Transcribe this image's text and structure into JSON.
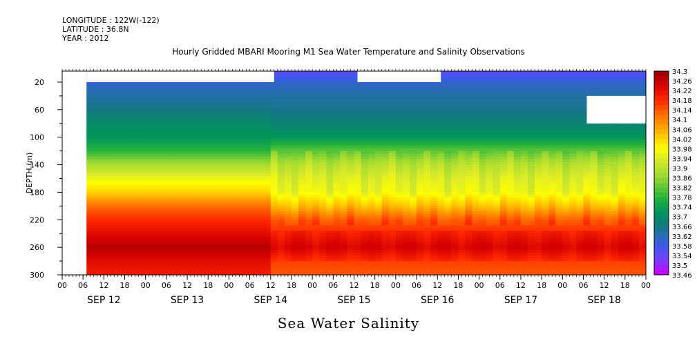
{
  "header": {
    "longitude": "LONGITUDE : 122W(-122)",
    "latitude": "LATITUDE : 36.8N",
    "year": "YEAR : 2012"
  },
  "footer_title": "Sea Water Salinity",
  "chart_data": {
    "type": "heatmap",
    "title": "Hourly Gridded MBARI Mooring M1 Sea Water Temperature and Salinity Observations",
    "xlabel": "",
    "ylabel": "DEPTH (m)",
    "x_range_hours": [
      0,
      168
    ],
    "y_range": [
      300,
      4
    ],
    "y_inverted": true,
    "y_ticks": [
      20,
      60,
      100,
      140,
      180,
      220,
      260,
      300
    ],
    "x_hour_ticks": [
      "00",
      "06",
      "12",
      "18",
      "00",
      "06",
      "12",
      "18",
      "00",
      "06",
      "12",
      "18",
      "00",
      "06",
      "12",
      "18",
      "00",
      "06",
      "12",
      "18",
      "00",
      "06",
      "12",
      "18",
      "00",
      "06",
      "12",
      "18",
      "00"
    ],
    "x_day_labels": [
      "SEP 12",
      "SEP 13",
      "SEP 14",
      "SEP 15",
      "SEP 16",
      "SEP 17",
      "SEP 18"
    ],
    "colorbar": {
      "min": 33.46,
      "max": 34.3,
      "step": 0.02,
      "tick_labels": [
        "34.3",
        "34.26",
        "34.22",
        "34.18",
        "34.14",
        "34.1",
        "34.06",
        "34.02",
        "33.98",
        "33.94",
        "33.9",
        "33.86",
        "33.82",
        "33.78",
        "33.74",
        "33.7",
        "33.66",
        "33.62",
        "33.58",
        "33.54",
        "33.5",
        "33.46"
      ]
    },
    "profile_depth_m": [
      10,
      20,
      40,
      60,
      80,
      100,
      120,
      140,
      160,
      180,
      200,
      220,
      240,
      260,
      280,
      300
    ],
    "profile_salinity_sep12_14": [
      33.6,
      33.6,
      33.63,
      33.66,
      33.7,
      33.72,
      33.78,
      33.88,
      33.96,
      34.02,
      34.12,
      34.18,
      34.22,
      34.27,
      34.22,
      34.2
    ],
    "profile_salinity_sep15_18": [
      33.56,
      33.6,
      33.63,
      33.65,
      33.68,
      33.72,
      33.82,
      33.9,
      33.94,
      33.96,
      34.04,
      34.14,
      34.18,
      34.22,
      34.16,
      34.14
    ],
    "missing_regions": [
      {
        "hours": [
          0,
          7
        ],
        "depth": [
          4,
          300
        ]
      },
      {
        "hours": [
          7,
          61
        ],
        "depth": [
          4,
          20
        ]
      },
      {
        "hours": [
          85,
          109
        ],
        "depth": [
          4,
          20
        ]
      },
      {
        "hours": [
          151,
          168
        ],
        "depth": [
          40,
          80
        ]
      }
    ],
    "grid": false,
    "legend": "right colorbar"
  }
}
